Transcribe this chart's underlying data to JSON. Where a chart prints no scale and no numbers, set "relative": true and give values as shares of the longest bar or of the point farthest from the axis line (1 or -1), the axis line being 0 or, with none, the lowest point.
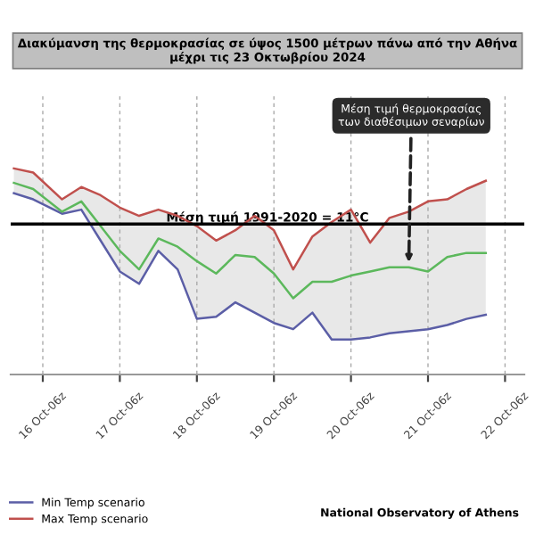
{
  "chart_data": {
    "type": "line",
    "title": "Διακύμανση της θερμοκρασίας σε ύψος 1500 μέτρων πάνω από την Αθήνα\nμέχρι τις 23 Οκτωβρίου 2024",
    "relative": true,
    "x": [
      "2024-10-15T21:00",
      "2024-10-16T03:00",
      "2024-10-16T12:00",
      "2024-10-16T18:00",
      "2024-10-17T00:00",
      "2024-10-17T06:00",
      "2024-10-17T12:00",
      "2024-10-17T18:00",
      "2024-10-18T00:00",
      "2024-10-18T06:00",
      "2024-10-18T12:00",
      "2024-10-18T18:00",
      "2024-10-19T00:00",
      "2024-10-19T06:00",
      "2024-10-19T12:00",
      "2024-10-19T18:00",
      "2024-10-20T00:00",
      "2024-10-20T06:00",
      "2024-10-20T12:00",
      "2024-10-20T18:00",
      "2024-10-21T00:00",
      "2024-10-21T06:00",
      "2024-10-21T12:00",
      "2024-10-21T18:00",
      "2024-10-22T00:00"
    ],
    "series": [
      {
        "name": "Min Temp scenario",
        "color": "#5b5ea6",
        "values": [
          0.88,
          0.85,
          0.78,
          0.8,
          0.65,
          0.5,
          0.44,
          0.6,
          0.51,
          0.27,
          0.28,
          0.35,
          0.3,
          0.25,
          0.22,
          0.3,
          0.17,
          0.17,
          0.18,
          0.2,
          0.21,
          0.22,
          0.24,
          0.27,
          0.29
        ]
      },
      {
        "name": "Max Temp scenario",
        "color": "#c0504d",
        "values": [
          1.0,
          0.98,
          0.85,
          0.91,
          0.87,
          0.81,
          0.77,
          0.8,
          0.77,
          0.72,
          0.65,
          0.7,
          0.77,
          0.7,
          0.51,
          0.67,
          0.74,
          0.8,
          0.64,
          0.76,
          0.79,
          0.84,
          0.85,
          0.9,
          0.94
        ]
      },
      {
        "color": "#5cb85c",
        "values": [
          0.93,
          0.9,
          0.79,
          0.84,
          0.72,
          0.6,
          0.51,
          0.66,
          0.62,
          0.55,
          0.49,
          0.58,
          0.57,
          0.49,
          0.37,
          0.45,
          0.45,
          0.48,
          0.5,
          0.52,
          0.52,
          0.5,
          0.57,
          0.59,
          0.59
        ],
        "lower": [
          0.88,
          0.85,
          0.78,
          0.8,
          0.65,
          0.5,
          0.44,
          0.6,
          0.51,
          0.27,
          0.28,
          0.35,
          0.3,
          0.25,
          0.22,
          0.3,
          0.17,
          0.17,
          0.18,
          0.2,
          0.21,
          0.22,
          0.24,
          0.27,
          0.29
        ],
        "upper": [
          1.0,
          0.98,
          0.85,
          0.91,
          0.87,
          0.81,
          0.77,
          0.8,
          0.77,
          0.72,
          0.65,
          0.7,
          0.77,
          0.7,
          0.51,
          0.67,
          0.74,
          0.8,
          0.64,
          0.76,
          0.79,
          0.84,
          0.85,
          0.9,
          0.94
        ]
      }
    ],
    "xlim": [
      "2024-10-15T20:00",
      "2024-10-22T12:00"
    ],
    "xticks": [
      {
        "value": "2024-10-16T06:00",
        "label": "16 Oct-06z"
      },
      {
        "value": "2024-10-17T06:00",
        "label": "17 Oct-06z"
      },
      {
        "value": "2024-10-18T06:00",
        "label": "18 Oct-06z"
      },
      {
        "value": "2024-10-19T06:00",
        "label": "19 Oct-06z"
      },
      {
        "value": "2024-10-20T06:00",
        "label": "20 Oct-06z"
      },
      {
        "value": "2024-10-21T06:00",
        "label": "21 Oct-06z"
      },
      {
        "value": "2024-10-22T06:00",
        "label": "22 Oct-06z"
      }
    ],
    "ref_lines": [
      {
        "axis": "y",
        "value": 0.73,
        "color": "#000000"
      }
    ],
    "annotations": [
      "Μέση τιμή 1991-2020 = 11°C",
      {
        "text": "Μέση τιμή θερμοκρασίας\nτων διαθέσιμων σεναρίων",
        "x": "2024-10-21T00:00",
        "y": 0.52
      },
      "National Observatory of Athens"
    ],
    "grid": "x",
    "legend": "bottom left",
    "tick_labels": "x"
  }
}
